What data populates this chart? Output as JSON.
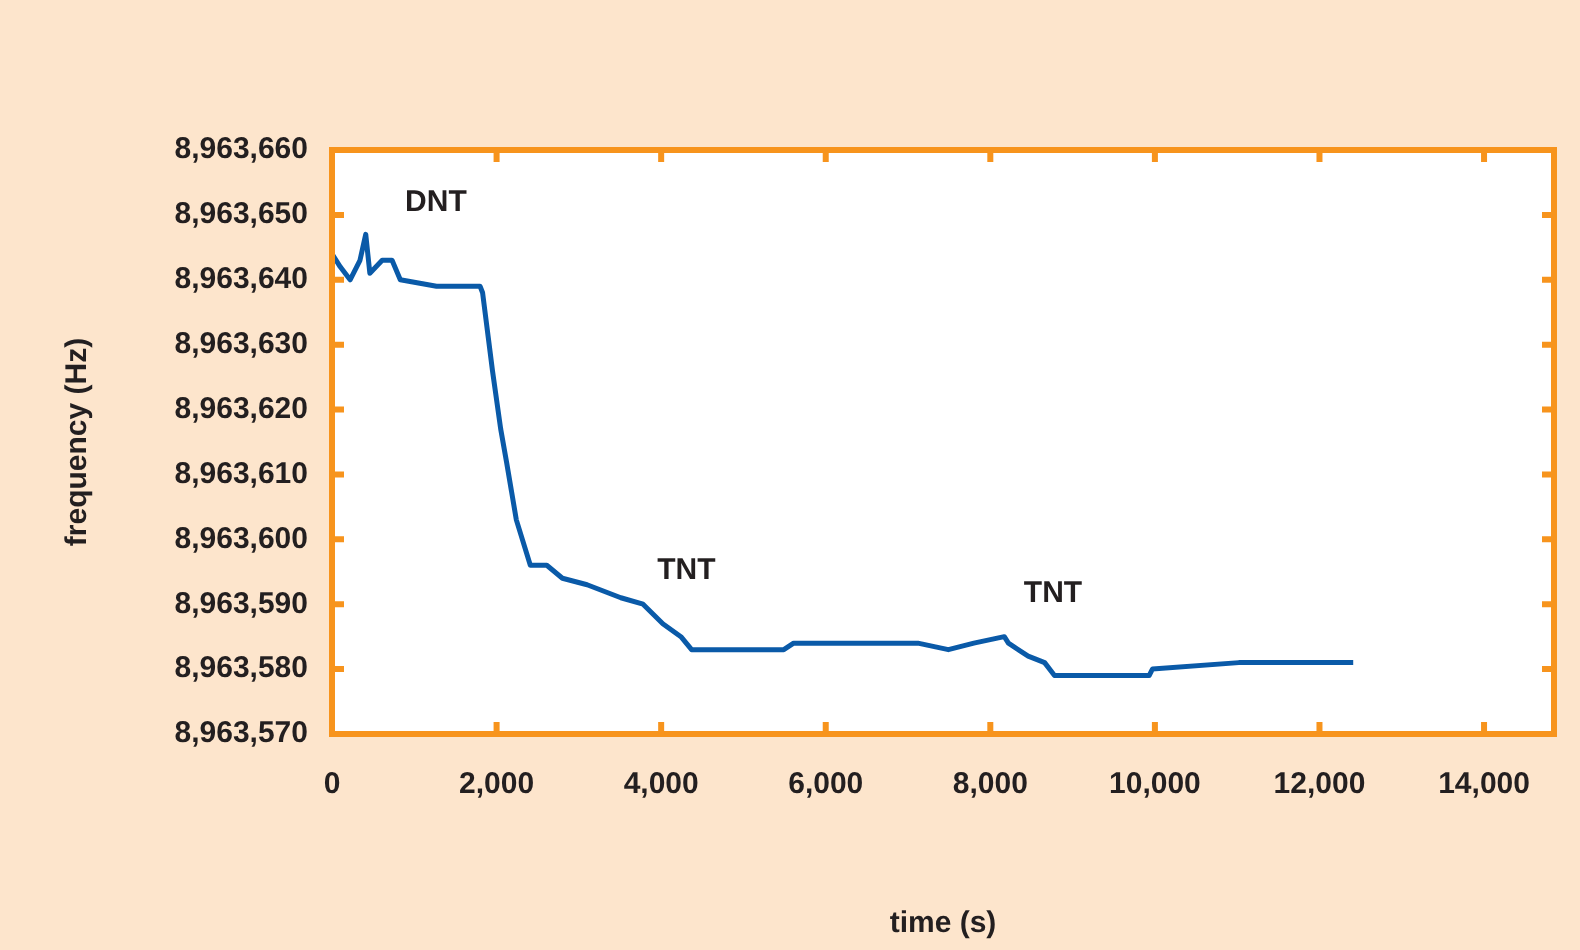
{
  "chart_data": {
    "type": "line",
    "xlabel": "time (s)",
    "ylabel": "frequency (Hz)",
    "xlim": [
      0,
      14850
    ],
    "ylim": [
      8963570,
      8963660
    ],
    "xticks": [
      0,
      {
        "value": 2000,
        "label": "2,000"
      },
      {
        "value": 4000,
        "label": "4,000"
      },
      {
        "value": 6000,
        "label": "6,000"
      },
      {
        "value": 8000,
        "label": "8,000"
      },
      {
        "value": 10000,
        "label": "10,000"
      },
      {
        "value": 12000,
        "label": "12,000"
      },
      {
        "value": 14000,
        "label": "14,000"
      }
    ],
    "yticks": [
      {
        "value": 8963570,
        "label": "8,963,570"
      },
      {
        "value": 8963580,
        "label": "8,963,580"
      },
      {
        "value": 8963590,
        "label": "8,963,590"
      },
      {
        "value": 8963600,
        "label": "8,963,600"
      },
      {
        "value": 8963610,
        "label": "8,963,610"
      },
      {
        "value": 8963620,
        "label": "8,963,620"
      },
      {
        "value": 8963630,
        "label": "8,963,630"
      },
      {
        "value": 8963640,
        "label": "8,963,640"
      },
      {
        "value": 8963650,
        "label": "8,963,650"
      },
      {
        "value": 8963660,
        "label": "8,963,660"
      }
    ],
    "marker": "none",
    "series": [
      {
        "color": "#0a5aa8",
        "x": [
          0,
          100,
          220,
          340,
          410,
          460,
          610,
          730,
          830,
          1270,
          1800,
          1830,
          1900,
          1950,
          2050,
          2120,
          2240,
          2410,
          2610,
          2800,
          3100,
          3510,
          3780,
          4020,
          4240,
          4370,
          5490,
          5610,
          7120,
          7490,
          7800,
          8170,
          8220,
          8460,
          8660,
          8780,
          9930,
          9970,
          11020,
          12320,
          12410
        ],
        "values": [
          8963644,
          8963642,
          8963640,
          8963643,
          8963647,
          8963641,
          8963643,
          8963643,
          8963640,
          8963639,
          8963639,
          8963638,
          8963631,
          8963626,
          8963617,
          8963612,
          8963603,
          8963596,
          8963596,
          8963594,
          8963593,
          8963591,
          8963590,
          8963587,
          8963585,
          8963583,
          8963583,
          8963584,
          8963584,
          8963583,
          8963584,
          8963585,
          8963584,
          8963582,
          8963581,
          8963579,
          8963579,
          8963580,
          8963581,
          8963581,
          8963581
        ]
      }
    ],
    "annotations": [
      "DNT",
      "TNT",
      "TNT"
    ]
  }
}
